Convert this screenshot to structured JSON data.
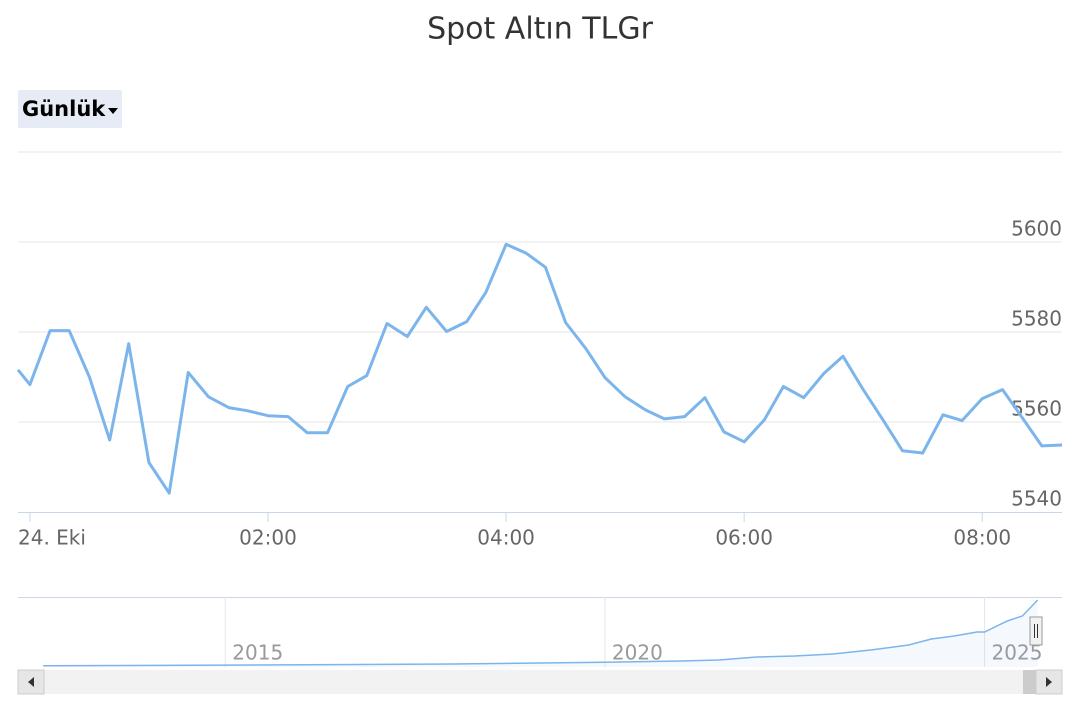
{
  "chart_data": {
    "type": "line",
    "title": "Spot Altın TLGr",
    "range_selector": "Günlük",
    "color": "#7cb5ec",
    "grid": true,
    "x": [
      -0.1,
      0.0,
      0.17,
      0.33,
      0.5,
      0.67,
      0.83,
      1.0,
      1.17,
      1.33,
      1.5,
      1.67,
      1.83,
      2.0,
      2.17,
      2.33,
      2.5,
      2.67,
      2.83,
      3.0,
      3.17,
      3.33,
      3.5,
      3.67,
      3.83,
      4.0,
      4.17,
      4.33,
      4.5,
      4.67,
      4.83,
      5.0,
      5.17,
      5.33,
      5.5,
      5.67,
      5.83,
      6.0,
      6.17,
      6.33,
      6.5,
      6.67,
      6.83,
      7.0,
      7.17,
      7.33,
      7.5,
      7.67,
      7.83,
      8.0,
      8.17,
      8.33,
      8.5,
      8.67
    ],
    "values": [
      5571.6,
      5568.3,
      5580.3,
      5580.3,
      5570,
      5556,
      5577.4,
      5551,
      5544.2,
      5571,
      5565.6,
      5563.2,
      5562.5,
      5561.4,
      5561.2,
      5557.6,
      5557.6,
      5567.9,
      5570.3,
      5581.9,
      5579,
      5585.5,
      5580.1,
      5582.3,
      5588.8,
      5599.5,
      5597.5,
      5594.4,
      5582.1,
      5576.3,
      5569.9,
      5565.6,
      5562.7,
      5560.7,
      5561.2,
      5565.4,
      5557.8,
      5555.6,
      5560.5,
      5567.9,
      5565.4,
      5570.8,
      5574.6,
      5567.2,
      5560.3,
      5553.6,
      5553.1,
      5561.6,
      5560.3,
      5565.2,
      5567.2,
      5561.2,
      5554.7,
      5554.9
    ],
    "xlim": [
      -0.1,
      8.67
    ],
    "xticks": [
      {
        "value": 0,
        "label": "24. Eki"
      },
      {
        "value": 2,
        "label": "02:00"
      },
      {
        "value": 4,
        "label": "04:00"
      },
      {
        "value": 6,
        "label": "06:00"
      },
      {
        "value": 8,
        "label": "08:00"
      }
    ],
    "ylim": [
      5540,
      5620
    ],
    "yticks": [
      5540,
      5560,
      5580,
      5600
    ],
    "navigator": {
      "x": [
        2012.6,
        2015,
        2018,
        2020,
        2021,
        2021.5,
        2022,
        2022.5,
        2023,
        2023.5,
        2024,
        2024.3,
        2024.6,
        2024.9,
        2025,
        2025.3,
        2025.5,
        2025.7
      ],
      "values": [
        100,
        160,
        250,
        400,
        500,
        580,
        830,
        910,
        1080,
        1410,
        1820,
        2320,
        2570,
        2900,
        2900,
        3810,
        4230,
        5550
      ],
      "xlim": [
        2012.27,
        2026.02
      ],
      "xticks": [
        2015,
        2020,
        2025
      ],
      "ylim": [
        0,
        5800
      ]
    }
  }
}
